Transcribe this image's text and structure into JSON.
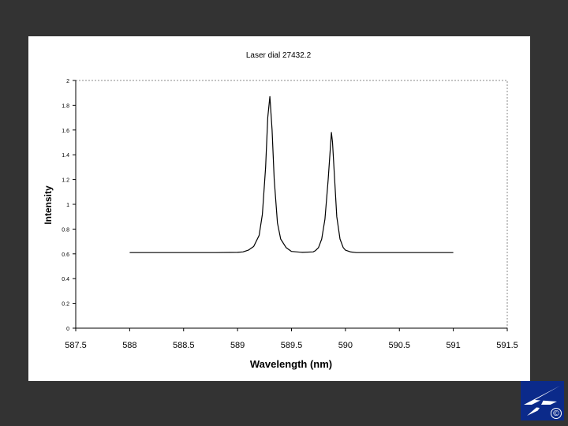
{
  "chart_data": {
    "type": "line",
    "title": "Laser dial 27432.2",
    "xlabel": "Wavelength (nm)",
    "ylabel": "Intensity",
    "xlim": [
      587.5,
      591.5
    ],
    "ylim": [
      0,
      2
    ],
    "xticks": [
      "587.5",
      "588",
      "588.5",
      "589",
      "589.5",
      "590",
      "590.5",
      "591",
      "591.5"
    ],
    "yticks": [
      "0",
      "0.2",
      "0.4",
      "0.6",
      "0.8",
      "1",
      "1.2",
      "1.4",
      "1.6",
      "1.8",
      "2"
    ],
    "grid": false,
    "legend": "none",
    "line_color": "#000000",
    "series": [
      {
        "x": [
          588.0,
          588.2,
          588.4,
          588.6,
          588.8,
          589.0,
          589.05,
          589.1,
          589.15,
          589.2,
          589.23,
          589.26,
          589.28,
          589.3,
          589.32,
          589.34,
          589.37,
          589.4,
          589.45,
          589.5,
          589.6,
          589.7,
          589.72,
          589.75,
          589.78,
          589.81,
          589.84,
          589.86,
          589.87,
          589.88,
          589.9,
          589.92,
          589.95,
          589.98,
          590.0,
          590.05,
          590.1,
          590.3,
          590.5,
          590.7,
          590.9,
          591.0
        ],
        "y": [
          0.61,
          0.61,
          0.61,
          0.61,
          0.61,
          0.612,
          0.616,
          0.63,
          0.66,
          0.75,
          0.92,
          1.3,
          1.7,
          1.87,
          1.6,
          1.2,
          0.85,
          0.72,
          0.65,
          0.62,
          0.612,
          0.616,
          0.625,
          0.65,
          0.72,
          0.88,
          1.2,
          1.45,
          1.58,
          1.5,
          1.2,
          0.9,
          0.72,
          0.65,
          0.63,
          0.615,
          0.61,
          0.61,
          0.61,
          0.61,
          0.61,
          0.61
        ]
      }
    ]
  },
  "logo": {
    "name": "institution-logo",
    "color": "#0b2a8a",
    "copyright_symbol": "©"
  }
}
